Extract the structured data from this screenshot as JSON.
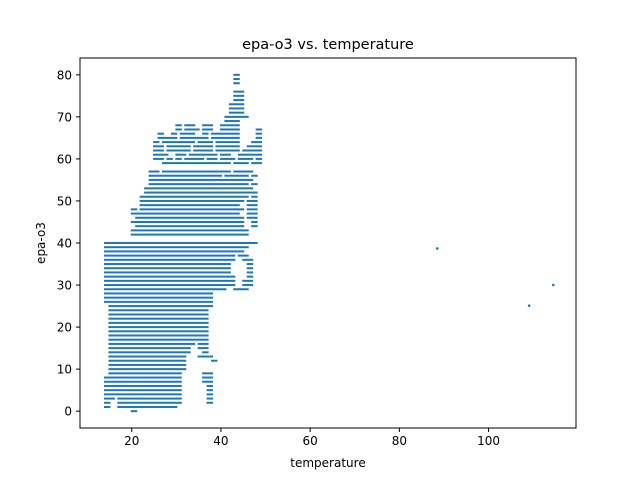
{
  "chart_data": {
    "type": "scatter",
    "title": "epa-o3 vs. temperature",
    "xlabel": "temperature",
    "ylabel": "epa-o3",
    "xlim": [
      8.4,
      119.6
    ],
    "ylim": [
      -4.0,
      84.0
    ],
    "xticks": [
      20,
      40,
      60,
      80,
      100
    ],
    "yticks": [
      0,
      10,
      20,
      30,
      40,
      50,
      60,
      70,
      80
    ],
    "grid": false,
    "marker_color": "#1f77b4",
    "rows": [
      {
        "y": 0,
        "x": [
          [
            20,
            21
          ]
        ]
      },
      {
        "y": 1,
        "x": [
          [
            14,
            15
          ],
          [
            17,
            30
          ]
        ]
      },
      {
        "y": 2,
        "x": [
          [
            14,
            15
          ],
          [
            17,
            31
          ],
          [
            37,
            38
          ]
        ]
      },
      {
        "y": 3,
        "x": [
          [
            14,
            16
          ],
          [
            17,
            31
          ],
          [
            37,
            38
          ]
        ]
      },
      {
        "y": 4,
        "x": [
          [
            14,
            31
          ],
          [
            37,
            38
          ]
        ]
      },
      {
        "y": 5,
        "x": [
          [
            14,
            31
          ],
          [
            37,
            38
          ]
        ]
      },
      {
        "y": 6,
        "x": [
          [
            14,
            31
          ],
          [
            37,
            38
          ]
        ]
      },
      {
        "y": 7,
        "x": [
          [
            14,
            31
          ],
          [
            36,
            38
          ]
        ]
      },
      {
        "y": 8,
        "x": [
          [
            14,
            31
          ],
          [
            36,
            38
          ]
        ]
      },
      {
        "y": 9,
        "x": [
          [
            15,
            31
          ],
          [
            36,
            38
          ]
        ]
      },
      {
        "y": 10,
        "x": [
          [
            15,
            32
          ]
        ]
      },
      {
        "y": 11,
        "x": [
          [
            15,
            32
          ]
        ]
      },
      {
        "y": 12,
        "x": [
          [
            15,
            32
          ],
          [
            38,
            39
          ]
        ]
      },
      {
        "y": 13,
        "x": [
          [
            15,
            32
          ],
          [
            35,
            38
          ]
        ]
      },
      {
        "y": 14,
        "x": [
          [
            15,
            33
          ],
          [
            36,
            37
          ]
        ]
      },
      {
        "y": 15,
        "x": [
          [
            15,
            33
          ],
          [
            35,
            37
          ]
        ]
      },
      {
        "y": 16,
        "x": [
          [
            15,
            34
          ],
          [
            35,
            37
          ]
        ]
      },
      {
        "y": 17,
        "x": [
          [
            15,
            37
          ]
        ]
      },
      {
        "y": 18,
        "x": [
          [
            15,
            37
          ]
        ]
      },
      {
        "y": 19,
        "x": [
          [
            15,
            37
          ]
        ]
      },
      {
        "y": 20,
        "x": [
          [
            15,
            37
          ]
        ]
      },
      {
        "y": 21,
        "x": [
          [
            15,
            37
          ]
        ]
      },
      {
        "y": 22,
        "x": [
          [
            15,
            37
          ]
        ]
      },
      {
        "y": 23,
        "x": [
          [
            15,
            37
          ]
        ]
      },
      {
        "y": 24,
        "x": [
          [
            15,
            37
          ]
        ]
      },
      {
        "y": 25,
        "x": [
          [
            15,
            38
          ]
        ]
      },
      {
        "y": 26,
        "x": [
          [
            14,
            38
          ]
        ]
      },
      {
        "y": 27,
        "x": [
          [
            14,
            38
          ]
        ]
      },
      {
        "y": 28,
        "x": [
          [
            14,
            38
          ]
        ]
      },
      {
        "y": 29,
        "x": [
          [
            14,
            41
          ],
          [
            43,
            46
          ]
        ]
      },
      {
        "y": 30,
        "x": [
          [
            14,
            43
          ],
          [
            45,
            47
          ]
        ]
      },
      {
        "y": 31,
        "x": [
          [
            14,
            43
          ],
          [
            45,
            47
          ]
        ]
      },
      {
        "y": 32,
        "x": [
          [
            14,
            43
          ],
          [
            46,
            47
          ]
        ]
      },
      {
        "y": 33,
        "x": [
          [
            14,
            42
          ],
          [
            46,
            47
          ]
        ]
      },
      {
        "y": 34,
        "x": [
          [
            14,
            42
          ],
          [
            46,
            47
          ]
        ]
      },
      {
        "y": 35,
        "x": [
          [
            14,
            42
          ],
          [
            46,
            47
          ]
        ]
      },
      {
        "y": 36,
        "x": [
          [
            14,
            43
          ],
          [
            45,
            47
          ]
        ]
      },
      {
        "y": 37,
        "x": [
          [
            14,
            43
          ],
          [
            44,
            46
          ]
        ]
      },
      {
        "y": 38,
        "x": [
          [
            14,
            45
          ]
        ]
      },
      {
        "y": 39,
        "x": [
          [
            14,
            46
          ]
        ]
      },
      {
        "y": 40,
        "x": [
          [
            14,
            48
          ]
        ]
      },
      {
        "y": 42,
        "x": [
          [
            20,
            46
          ]
        ]
      },
      {
        "y": 43,
        "x": [
          [
            20,
            46
          ]
        ]
      },
      {
        "y": 44,
        "x": [
          [
            21,
            45
          ],
          [
            47,
            48
          ]
        ]
      },
      {
        "y": 45,
        "x": [
          [
            20,
            45
          ],
          [
            47,
            48
          ]
        ]
      },
      {
        "y": 46,
        "x": [
          [
            21,
            45
          ],
          [
            46,
            48
          ]
        ]
      },
      {
        "y": 47,
        "x": [
          [
            20,
            44
          ],
          [
            46,
            48
          ]
        ]
      },
      {
        "y": 48,
        "x": [
          [
            20,
            21
          ],
          [
            22,
            45
          ],
          [
            46,
            48
          ]
        ]
      },
      {
        "y": 49,
        "x": [
          [
            22,
            44
          ],
          [
            46,
            48
          ]
        ]
      },
      {
        "y": 50,
        "x": [
          [
            22,
            45
          ],
          [
            46,
            48
          ]
        ]
      },
      {
        "y": 51,
        "x": [
          [
            22,
            46
          ],
          [
            47,
            48
          ]
        ]
      },
      {
        "y": 52,
        "x": [
          [
            23,
            48
          ]
        ]
      },
      {
        "y": 53,
        "x": [
          [
            23,
            47
          ]
        ]
      },
      {
        "y": 54,
        "x": [
          [
            24,
            46
          ],
          [
            47,
            48
          ]
        ]
      },
      {
        "y": 55,
        "x": [
          [
            24,
            47
          ]
        ]
      },
      {
        "y": 56,
        "x": [
          [
            24,
            40
          ],
          [
            41,
            46
          ],
          [
            47,
            48
          ]
        ]
      },
      {
        "y": 57,
        "x": [
          [
            24,
            26
          ],
          [
            27,
            42
          ],
          [
            43,
            47
          ]
        ]
      },
      {
        "y": 59,
        "x": [
          [
            27,
            42
          ],
          [
            43,
            46
          ],
          [
            47,
            49
          ]
        ]
      },
      {
        "y": 60,
        "x": [
          [
            25,
            27
          ],
          [
            28,
            29
          ],
          [
            30,
            31
          ],
          [
            32,
            36
          ],
          [
            37,
            39
          ],
          [
            40,
            43
          ],
          [
            44,
            47
          ],
          [
            48,
            49
          ]
        ]
      },
      {
        "y": 61,
        "x": [
          [
            25,
            28
          ],
          [
            30,
            32
          ],
          [
            33,
            39
          ],
          [
            40,
            42
          ],
          [
            44,
            49
          ]
        ]
      },
      {
        "y": 62,
        "x": [
          [
            25,
            27
          ],
          [
            28,
            33
          ],
          [
            34,
            38
          ],
          [
            39,
            44
          ],
          [
            45,
            49
          ]
        ]
      },
      {
        "y": 63,
        "x": [
          [
            25,
            27
          ],
          [
            28,
            33
          ],
          [
            34,
            38
          ],
          [
            39,
            44
          ],
          [
            46,
            49
          ]
        ]
      },
      {
        "y": 64,
        "x": [
          [
            25,
            26
          ],
          [
            27,
            34
          ],
          [
            35,
            38
          ],
          [
            39,
            44
          ],
          [
            47,
            49
          ]
        ]
      },
      {
        "y": 65,
        "x": [
          [
            26,
            30
          ],
          [
            31,
            37
          ],
          [
            38,
            44
          ],
          [
            48,
            49
          ]
        ]
      },
      {
        "y": 66,
        "x": [
          [
            26,
            27
          ],
          [
            29,
            30
          ],
          [
            31,
            34
          ],
          [
            36,
            37
          ],
          [
            38,
            44
          ],
          [
            48,
            49
          ]
        ]
      },
      {
        "y": 67,
        "x": [
          [
            30,
            31
          ],
          [
            32,
            35
          ],
          [
            36,
            38
          ],
          [
            40,
            44
          ],
          [
            48,
            49
          ]
        ]
      },
      {
        "y": 68,
        "x": [
          [
            30,
            31
          ],
          [
            32,
            34
          ],
          [
            36,
            38
          ],
          [
            40,
            44
          ]
        ]
      },
      {
        "y": 69,
        "x": [
          [
            41,
            44
          ]
        ]
      },
      {
        "y": 70,
        "x": [
          [
            41,
            46
          ]
        ]
      },
      {
        "y": 71,
        "x": [
          [
            42,
            45
          ]
        ]
      },
      {
        "y": 72,
        "x": [
          [
            42,
            45
          ]
        ]
      },
      {
        "y": 73,
        "x": [
          [
            42,
            45
          ]
        ]
      },
      {
        "y": 74,
        "x": [
          [
            43,
            45
          ]
        ]
      },
      {
        "y": 75,
        "x": [
          [
            43,
            45
          ]
        ]
      },
      {
        "y": 76,
        "x": [
          [
            43,
            45
          ]
        ]
      },
      {
        "y": 78,
        "x": [
          [
            43,
            44
          ]
        ]
      },
      {
        "y": 79,
        "x": [
          [
            43,
            44
          ]
        ]
      },
      {
        "y": 80,
        "x": [
          [
            43,
            44
          ]
        ]
      }
    ],
    "outliers": [
      {
        "x": 88.5,
        "y": 38.7
      },
      {
        "x": 109.1,
        "y": 25.1
      },
      {
        "x": 114.5,
        "y": 30.0
      }
    ]
  }
}
